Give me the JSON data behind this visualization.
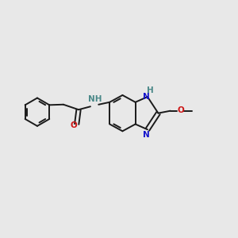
{
  "background_color": "#e8e8e8",
  "bond_color": "#1a1a1a",
  "N_color": "#1414cc",
  "O_color": "#cc1414",
  "NH_color": "#4a8888",
  "figsize": [
    3.0,
    3.0
  ],
  "dpi": 100,
  "xlim": [
    0,
    10
  ],
  "ylim": [
    0,
    10
  ]
}
